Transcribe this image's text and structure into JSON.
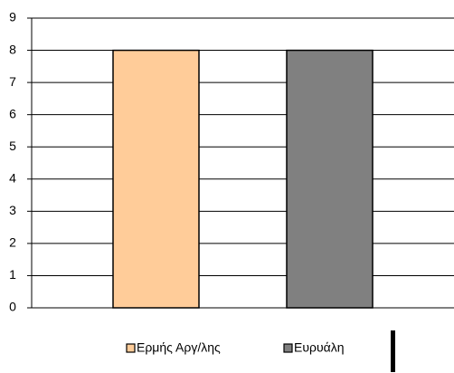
{
  "chart_data": {
    "type": "bar",
    "categories": [
      null
    ],
    "series": [
      {
        "name": "Ερμής Αργ/λης",
        "color": "#ffcc99",
        "values": [
          8
        ]
      },
      {
        "name": "Ευρυάλη",
        "color": "#808080",
        "values": [
          8
        ]
      }
    ],
    "ylim": [
      0,
      9
    ],
    "yticks": [
      0,
      1,
      2,
      3,
      4,
      5,
      6,
      7,
      8,
      9
    ],
    "grid": true,
    "legend": "bottom"
  }
}
